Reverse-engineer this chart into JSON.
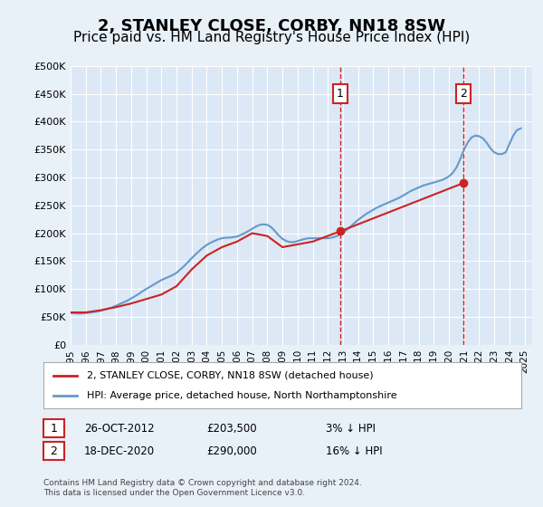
{
  "title": "2, STANLEY CLOSE, CORBY, NN18 8SW",
  "subtitle": "Price paid vs. HM Land Registry's House Price Index (HPI)",
  "title_fontsize": 13,
  "subtitle_fontsize": 11,
  "background_color": "#e8f0f8",
  "plot_bg_color": "#dce8f5",
  "grid_color": "#ffffff",
  "ylabel_ticks": [
    "£0",
    "£50K",
    "£100K",
    "£150K",
    "£200K",
    "£250K",
    "£300K",
    "£350K",
    "£400K",
    "£450K",
    "£500K"
  ],
  "ylim": [
    0,
    500000
  ],
  "xlim_start": 1995,
  "xlim_end": 2025.5,
  "xticks": [
    1995,
    1996,
    1997,
    1998,
    1999,
    2000,
    2001,
    2002,
    2003,
    2004,
    2005,
    2006,
    2007,
    2008,
    2009,
    2010,
    2011,
    2012,
    2013,
    2014,
    2015,
    2016,
    2017,
    2018,
    2019,
    2020,
    2021,
    2022,
    2023,
    2024,
    2025
  ],
  "hpi_color": "#6699cc",
  "price_color": "#cc2222",
  "sale1_date": 2012.82,
  "sale1_price": 203500,
  "sale1_label": "1",
  "sale1_hpi_price": 209800,
  "sale2_date": 2020.96,
  "sale2_price": 290000,
  "sale2_label": "2",
  "sale2_hpi_price": 345000,
  "legend_label_price": "2, STANLEY CLOSE, CORBY, NN18 8SW (detached house)",
  "legend_label_hpi": "HPI: Average price, detached house, North Northamptonshire",
  "note1_label": "1",
  "note1_date": "26-OCT-2012",
  "note1_price": "£203,500",
  "note1_pct": "3% ↓ HPI",
  "note2_label": "2",
  "note2_date": "18-DEC-2020",
  "note2_price": "£290,000",
  "note2_pct": "16% ↓ HPI",
  "footer": "Contains HM Land Registry data © Crown copyright and database right 2024.\nThis data is licensed under the Open Government Licence v3.0.",
  "hpi_years": [
    1995.0,
    1995.25,
    1995.5,
    1995.75,
    1996.0,
    1996.25,
    1996.5,
    1996.75,
    1997.0,
    1997.25,
    1997.5,
    1997.75,
    1998.0,
    1998.25,
    1998.5,
    1998.75,
    1999.0,
    1999.25,
    1999.5,
    1999.75,
    2000.0,
    2000.25,
    2000.5,
    2000.75,
    2001.0,
    2001.25,
    2001.5,
    2001.75,
    2002.0,
    2002.25,
    2002.5,
    2002.75,
    2003.0,
    2003.25,
    2003.5,
    2003.75,
    2004.0,
    2004.25,
    2004.5,
    2004.75,
    2005.0,
    2005.25,
    2005.5,
    2005.75,
    2006.0,
    2006.25,
    2006.5,
    2006.75,
    2007.0,
    2007.25,
    2007.5,
    2007.75,
    2008.0,
    2008.25,
    2008.5,
    2008.75,
    2009.0,
    2009.25,
    2009.5,
    2009.75,
    2010.0,
    2010.25,
    2010.5,
    2010.75,
    2011.0,
    2011.25,
    2011.5,
    2011.75,
    2012.0,
    2012.25,
    2012.5,
    2012.75,
    2013.0,
    2013.25,
    2013.5,
    2013.75,
    2014.0,
    2014.25,
    2014.5,
    2014.75,
    2015.0,
    2015.25,
    2015.5,
    2015.75,
    2016.0,
    2016.25,
    2016.5,
    2016.75,
    2017.0,
    2017.25,
    2017.5,
    2017.75,
    2018.0,
    2018.25,
    2018.5,
    2018.75,
    2019.0,
    2019.25,
    2019.5,
    2019.75,
    2020.0,
    2020.25,
    2020.5,
    2020.75,
    2021.0,
    2021.25,
    2021.5,
    2021.75,
    2022.0,
    2022.25,
    2022.5,
    2022.75,
    2023.0,
    2023.25,
    2023.5,
    2023.75,
    2024.0,
    2024.25,
    2024.5,
    2024.75
  ],
  "hpi_values": [
    57000,
    56500,
    56000,
    56200,
    57000,
    57500,
    58500,
    59500,
    61000,
    63000,
    65000,
    67000,
    70000,
    73000,
    76000,
    79000,
    83000,
    87000,
    91000,
    96000,
    100000,
    104000,
    108000,
    112000,
    116000,
    119000,
    122000,
    125000,
    129000,
    135000,
    141000,
    148000,
    155000,
    162000,
    168000,
    174000,
    179000,
    183000,
    186000,
    189000,
    191000,
    192000,
    192000,
    193000,
    194000,
    197000,
    200000,
    204000,
    208000,
    212000,
    215000,
    216000,
    215000,
    211000,
    204000,
    196000,
    190000,
    186000,
    184000,
    184000,
    186000,
    188000,
    190000,
    191000,
    191000,
    191000,
    191000,
    191000,
    191000,
    192000,
    194000,
    197000,
    201000,
    206000,
    212000,
    218000,
    224000,
    229000,
    234000,
    238000,
    242000,
    246000,
    249000,
    252000,
    255000,
    258000,
    261000,
    264000,
    268000,
    272000,
    276000,
    279000,
    282000,
    285000,
    287000,
    289000,
    291000,
    293000,
    295000,
    298000,
    302000,
    308000,
    318000,
    333000,
    350000,
    363000,
    372000,
    375000,
    374000,
    370000,
    362000,
    352000,
    345000,
    342000,
    342000,
    345000,
    360000,
    375000,
    385000,
    388000
  ],
  "price_years": [
    1995.0,
    1996.0,
    1997.0,
    1998.0,
    1999.0,
    2000.0,
    2001.0,
    2002.0,
    2003.0,
    2004.0,
    2005.0,
    2006.0,
    2007.0,
    2008.0,
    2009.0,
    2010.0,
    2011.0,
    2012.82,
    2020.96
  ],
  "price_values": [
    58000,
    58000,
    62000,
    67500,
    74000,
    82000,
    90000,
    105000,
    135000,
    160000,
    175000,
    185000,
    200000,
    195000,
    175000,
    180000,
    185000,
    203500,
    290000
  ]
}
